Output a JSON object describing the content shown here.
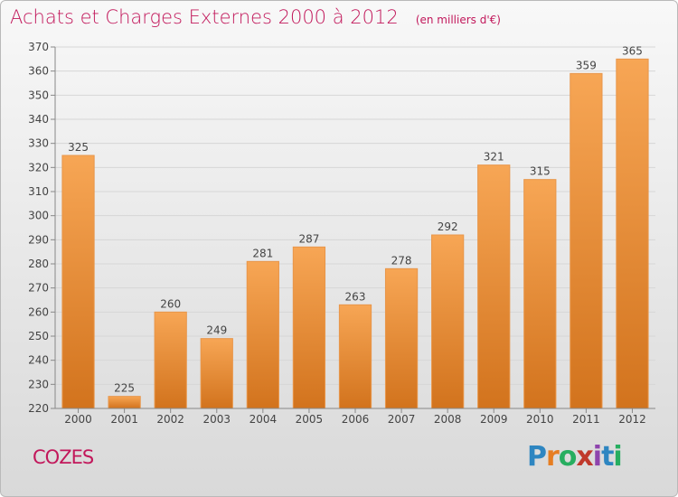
{
  "header": {
    "title": "Achats et Charges Externes 2000 à 2012",
    "subtitle": "(en milliers d'€)"
  },
  "footer": {
    "town": "COZES",
    "logo_text": "Proxiti",
    "logo_colors": [
      "#2e86c1",
      "#e67e22",
      "#27ae60",
      "#c0392b",
      "#8e44ad",
      "#2e86c1",
      "#27ae60"
    ]
  },
  "colors": {
    "bar_top": "#f7a655",
    "bar_bottom": "#d2731d",
    "text": "#c2185b"
  },
  "chart_data": {
    "type": "bar",
    "title": "Achats et Charges Externes 2000 à 2012",
    "subtitle": "(en milliers d'€)",
    "categories": [
      "2000",
      "2001",
      "2002",
      "2003",
      "2004",
      "2005",
      "2006",
      "2007",
      "2008",
      "2009",
      "2010",
      "2011",
      "2012"
    ],
    "values": [
      325,
      225,
      260,
      249,
      281,
      287,
      263,
      278,
      292,
      321,
      315,
      359,
      365
    ],
    "ylim": [
      220,
      370
    ],
    "yticks": [
      220,
      230,
      240,
      250,
      260,
      270,
      280,
      290,
      300,
      310,
      320,
      330,
      340,
      350,
      360,
      370
    ],
    "grid": true,
    "data_labels": true
  }
}
